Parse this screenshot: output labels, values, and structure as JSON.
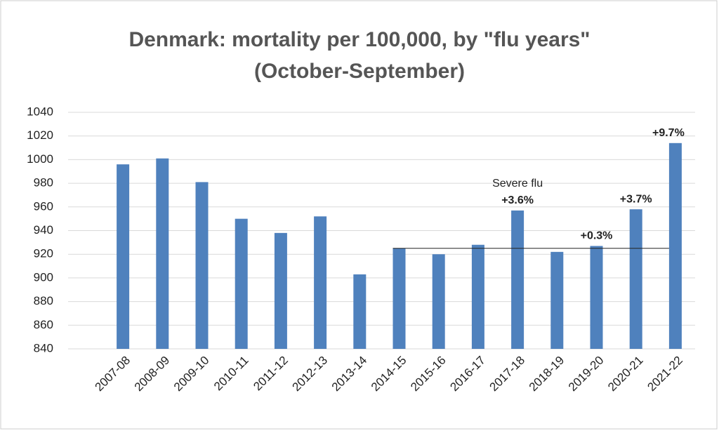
{
  "chart_data": {
    "type": "bar",
    "title": "Denmark: mortality per 100,000, by \"flu years\"",
    "subtitle": "(October-September)",
    "categories": [
      "2007-08",
      "2008-09",
      "2009-10",
      "2010-11",
      "2011-12",
      "2012-13",
      "2013-14",
      "2014-15",
      "2015-16",
      "2016-17",
      "2017-18",
      "2018-19",
      "2019-20",
      "2020-21",
      "2021-22"
    ],
    "values": [
      996,
      1001,
      981,
      950,
      938,
      952,
      903,
      925,
      920,
      928,
      957,
      922,
      927,
      958,
      1014
    ],
    "color": "#4f81bd",
    "ylim": [
      840,
      1040
    ],
    "yticks": [
      840,
      860,
      880,
      900,
      920,
      940,
      960,
      980,
      1000,
      1020,
      1040
    ],
    "grid": true,
    "reference_line": {
      "value": 925,
      "from": "2014-15",
      "to": "2021-22"
    },
    "annotations": [
      {
        "text": "+3.6%",
        "category": "2017-18",
        "bold": true
      },
      {
        "text": "Severe flu",
        "category": "2017-18",
        "bold": false
      },
      {
        "text": "+0.3%",
        "category": "2019-20",
        "bold": true
      },
      {
        "text": "+3.7%",
        "category": "2020-21",
        "bold": true
      },
      {
        "text": "+9.7%",
        "category": "2021-22",
        "bold": true
      }
    ]
  }
}
